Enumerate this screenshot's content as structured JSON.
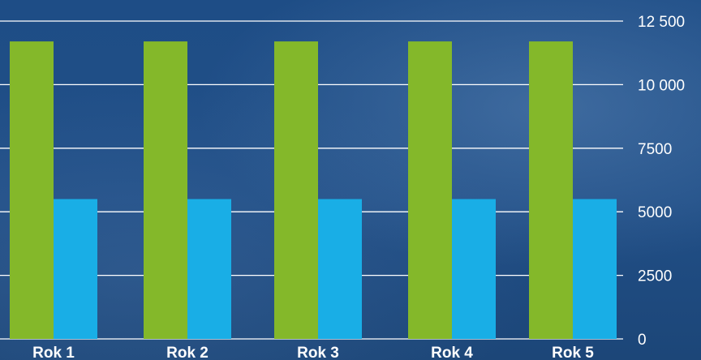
{
  "chart_data": {
    "type": "bar",
    "categories": [
      "Rok 1",
      "Rok 2",
      "Rok 3",
      "Rok 4",
      "Rok 5"
    ],
    "series": [
      {
        "color": "#84b82a",
        "values": [
          11700,
          11700,
          11700,
          11700,
          11700
        ]
      },
      {
        "color": "#19aee6",
        "values": [
          5500,
          5500,
          5500,
          5500,
          5500
        ]
      }
    ],
    "yticks": [
      0,
      2500,
      5000,
      7500,
      10000,
      12500
    ],
    "ytick_labels": [
      "0",
      "2500",
      "5000",
      "7500",
      "10 000",
      "12 500"
    ],
    "ylim": [
      0,
      12500
    ],
    "grid": true,
    "title": "",
    "xlabel": "",
    "ylabel": ""
  }
}
